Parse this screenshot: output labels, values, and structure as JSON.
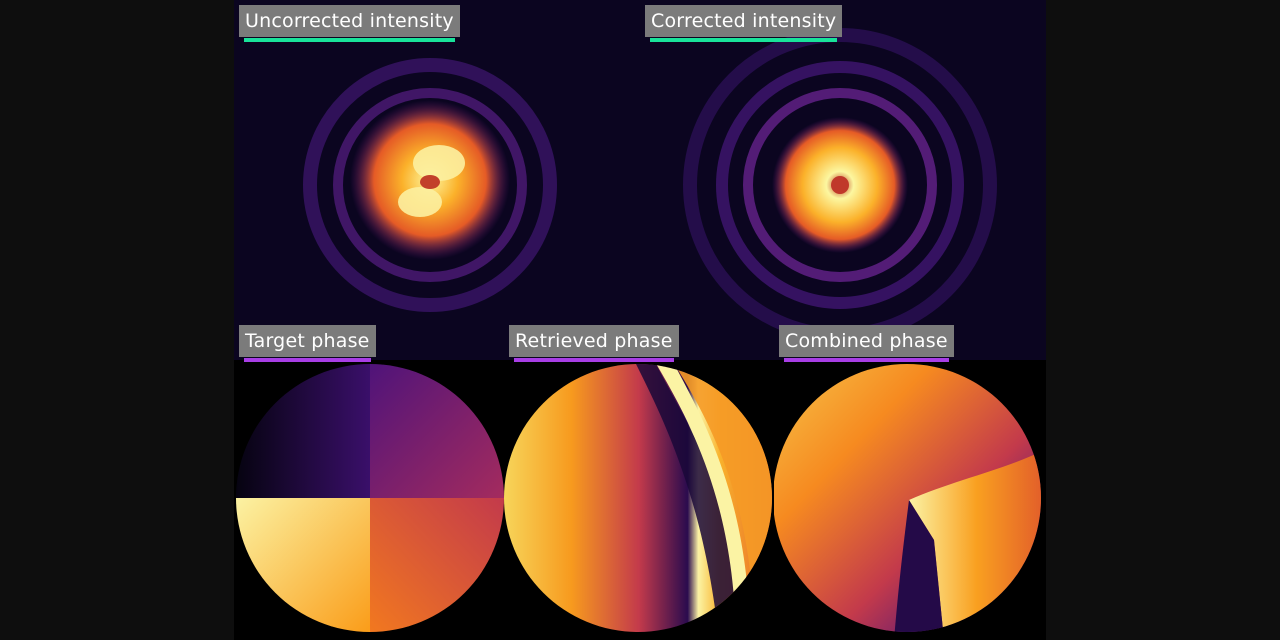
{
  "panels": {
    "uncorrected": {
      "label": "Uncorrected intensity"
    },
    "corrected": {
      "label": "Corrected intensity"
    },
    "target": {
      "label": "Target phase"
    },
    "retrieved": {
      "label": "Retrieved phase"
    },
    "combined": {
      "label": "Combined phase"
    }
  },
  "colors": {
    "intensity_underline": "#19e39a",
    "phase_underline": "#a83ee6",
    "label_background": "#7b7b7b",
    "colormap": "inferno"
  }
}
